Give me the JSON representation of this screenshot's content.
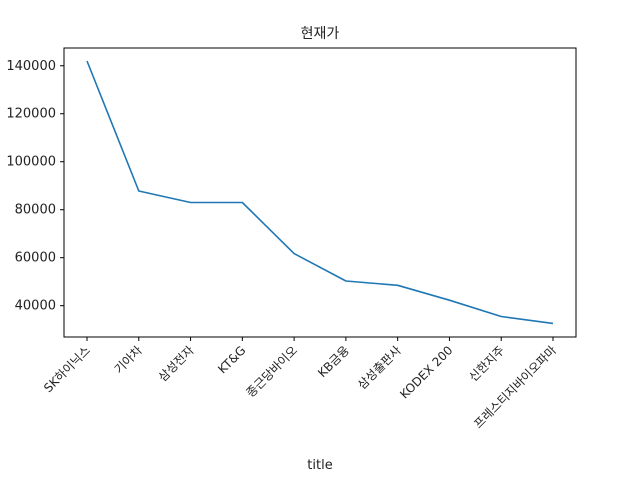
{
  "chart_data": {
    "type": "line",
    "title": "현재가",
    "xlabel": "title",
    "ylabel": "",
    "categories": [
      "SK하이닉스",
      "기아차",
      "삼성전자",
      "KT&G",
      "종근당바이오",
      "KB금융",
      "삼성출판사",
      "KODEX 200",
      "신한지주",
      "프레스티지바이오파마"
    ],
    "series": [
      {
        "values": [
          142000,
          87800,
          83000,
          83000,
          61700,
          50300,
          48500,
          42300,
          35500,
          32600
        ]
      }
    ],
    "ylim": [
      26950,
      147400
    ],
    "yticks": [
      40000,
      60000,
      80000,
      100000,
      120000,
      140000
    ],
    "ytick_labels": [
      "40000",
      "60000",
      "80000",
      "100000",
      "120000",
      "140000"
    ],
    "grid": false,
    "line_color": "#1f77b4"
  }
}
